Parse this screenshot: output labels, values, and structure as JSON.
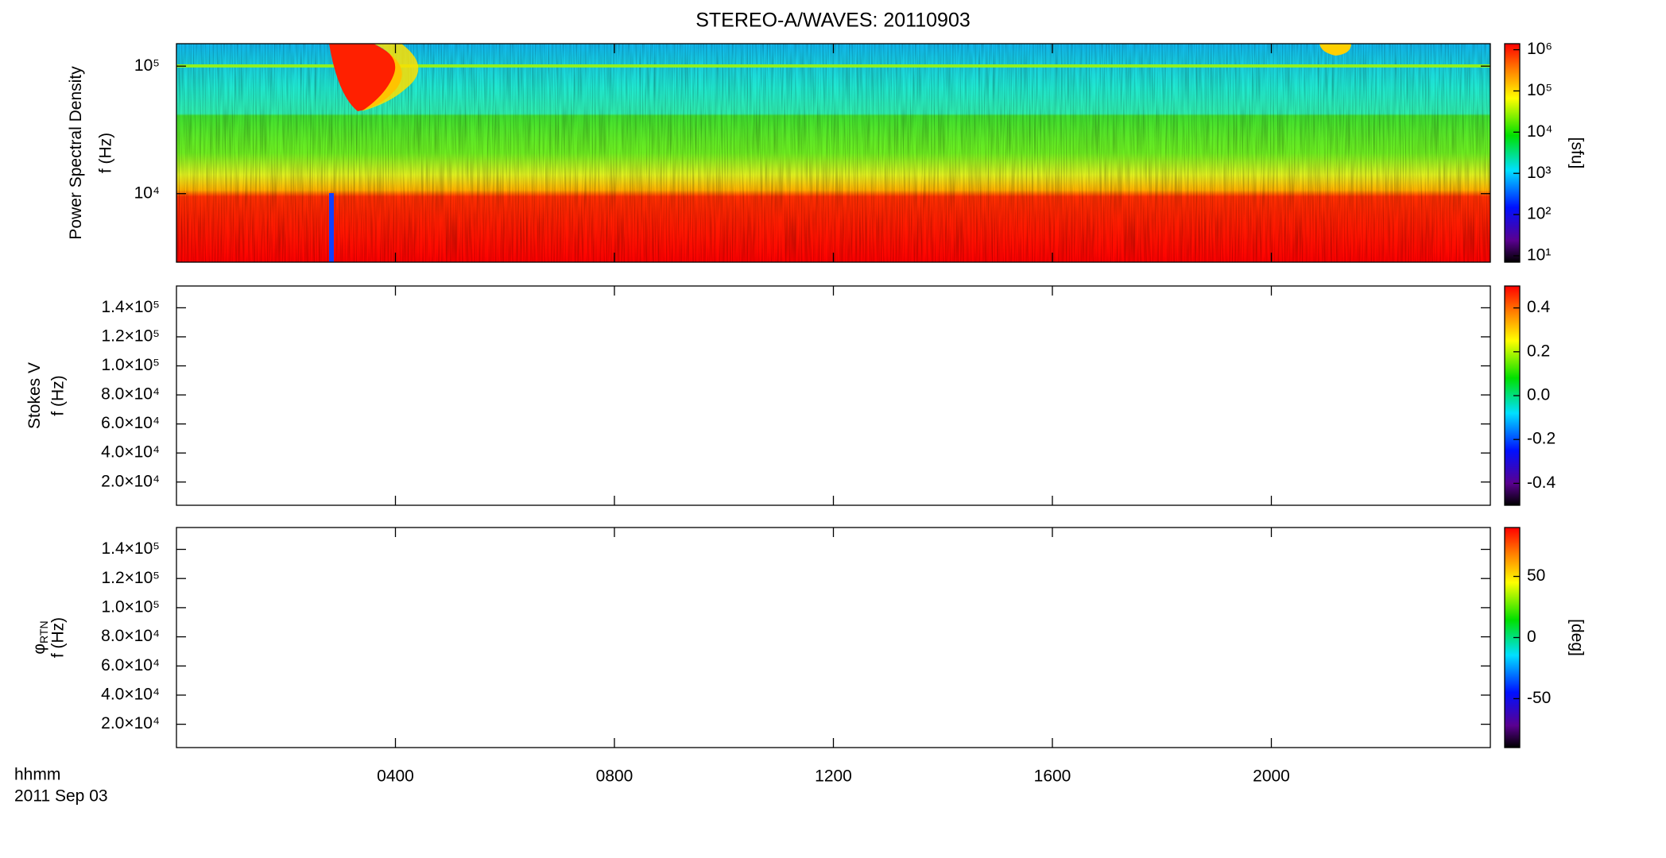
{
  "chart_data": {
    "type": "spectrogram",
    "title": "STEREO-A/WAVES: 20110903",
    "xlabel": "hhmm",
    "date_label": "2011 Sep 03",
    "xlim": [
      0,
      24
    ],
    "xticks": [
      {
        "value": 4,
        "label": "0400"
      },
      {
        "value": 8,
        "label": "0800"
      },
      {
        "value": 12,
        "label": "1200"
      },
      {
        "value": 16,
        "label": "1600"
      },
      {
        "value": 20,
        "label": "2000"
      }
    ],
    "panels": [
      {
        "ylabel": "Power Spectral Density",
        "ylabel2": "f (Hz)",
        "log_y": true,
        "ylim": [
          2900,
          150000
        ],
        "yticks": [
          {
            "value": 10000,
            "label": "10⁴"
          },
          {
            "value": 100000,
            "label": "10⁵"
          }
        ],
        "colorbar": {
          "log": true,
          "lim": [
            7,
            1400000
          ],
          "label": "[sfu]",
          "ticks": [
            {
              "value": 10,
              "label": "10¹"
            },
            {
              "value": 100,
              "label": "10²"
            },
            {
              "value": 1000,
              "label": "10³"
            },
            {
              "value": 10000,
              "label": "10⁴"
            },
            {
              "value": 100000,
              "label": "10⁵"
            },
            {
              "value": 1000000,
              "label": "10⁶"
            }
          ]
        }
      },
      {
        "ylabel": "Stokes V",
        "ylabel2": "f (Hz)",
        "log_y": false,
        "ylim": [
          4000,
          155000
        ],
        "yticks": [
          {
            "value": 20000,
            "label": "2.0×10⁴"
          },
          {
            "value": 40000,
            "label": "4.0×10⁴"
          },
          {
            "value": 60000,
            "label": "6.0×10⁴"
          },
          {
            "value": 80000,
            "label": "8.0×10⁴"
          },
          {
            "value": 100000,
            "label": "1.0×10⁵"
          },
          {
            "value": 120000,
            "label": "1.2×10⁵"
          },
          {
            "value": 140000,
            "label": "1.4×10⁵"
          }
        ],
        "colorbar": {
          "log": false,
          "lim": [
            -0.5,
            0.5
          ],
          "ticks": [
            0.4,
            0.2,
            {
              "value": 0,
              "label": "0.0"
            },
            -0.2,
            -0.4
          ]
        }
      },
      {
        "ylabel": "φ",
        "ylabel_sub": "RTN",
        "ylabel2": "f (Hz)",
        "log_y": false,
        "ylim": [
          4000,
          155000
        ],
        "yticks": [
          {
            "value": 20000,
            "label": "2.0×10⁴"
          },
          {
            "value": 40000,
            "label": "4.0×10⁴"
          },
          {
            "value": 60000,
            "label": "6.0×10⁴"
          },
          {
            "value": 80000,
            "label": "8.0×10⁴"
          },
          {
            "value": 100000,
            "label": "1.0×10⁵"
          },
          {
            "value": 120000,
            "label": "1.2×10⁵"
          },
          {
            "value": 140000,
            "label": "1.4×10⁵"
          }
        ],
        "colorbar": {
          "log": false,
          "lim": [
            -90,
            90
          ],
          "label": "[deg]",
          "ticks": [
            50,
            0,
            -50
          ]
        }
      }
    ]
  }
}
